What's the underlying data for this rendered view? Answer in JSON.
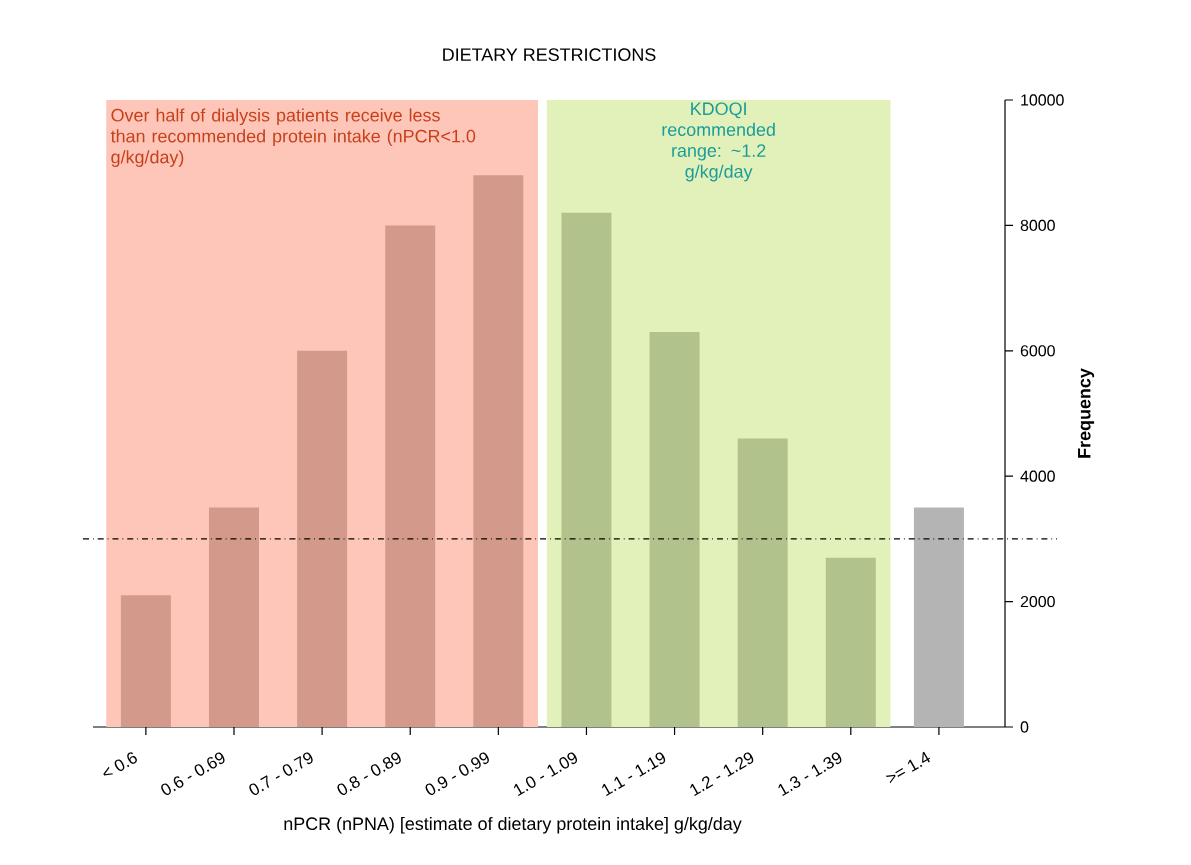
{
  "chart_data": {
    "type": "bar",
    "title": "DIETARY RESTRICTIONS",
    "xlabel": "nPCR (nPNA) [estimate of dietary protein intake] g/kg/day",
    "ylabel": "Frequency",
    "categories": [
      "< 0.6",
      "0.6 - 0.69",
      "0.7 - 0.79",
      "0.8 - 0.89",
      "0.9 - 0.99",
      "1.0 - 1.09",
      "1.1 - 1.19",
      "1.2 - 1.29",
      "1.3 - 1.39",
      ">= 1.4"
    ],
    "values": [
      2100,
      3500,
      6000,
      8000,
      8800,
      8200,
      6300,
      4600,
      2700,
      3500
    ],
    "colors": [
      "#d39a8c",
      "#d39a8c",
      "#d39a8c",
      "#d39a8c",
      "#d39a8c",
      "#b2c28c",
      "#b2c28c",
      "#b2c28c",
      "#b2c28c",
      "#b4b4b4"
    ],
    "ylim": [
      0,
      10000
    ],
    "yticks": [
      0,
      2000,
      4000,
      6000,
      8000,
      10000
    ],
    "ref_lines": [
      {
        "axis": "y",
        "value": 3000,
        "line_style": "dashdot",
        "color": "#000000"
      }
    ],
    "bands": [
      {
        "axis": "x",
        "from": "< 0.6",
        "to": "0.9 - 0.99",
        "label": "Over half of dialysis patients receive less than recommended protein intake (nPCR<1.0 g/kg/day)",
        "color": "#fec5b9"
      },
      {
        "axis": "x",
        "from": "1.0 - 1.09",
        "to": "1.3 - 1.39",
        "label": "KDOQI recommended range: ~1.2 g/kg/day",
        "color": "#e2f0b9"
      }
    ],
    "grid": false
  }
}
